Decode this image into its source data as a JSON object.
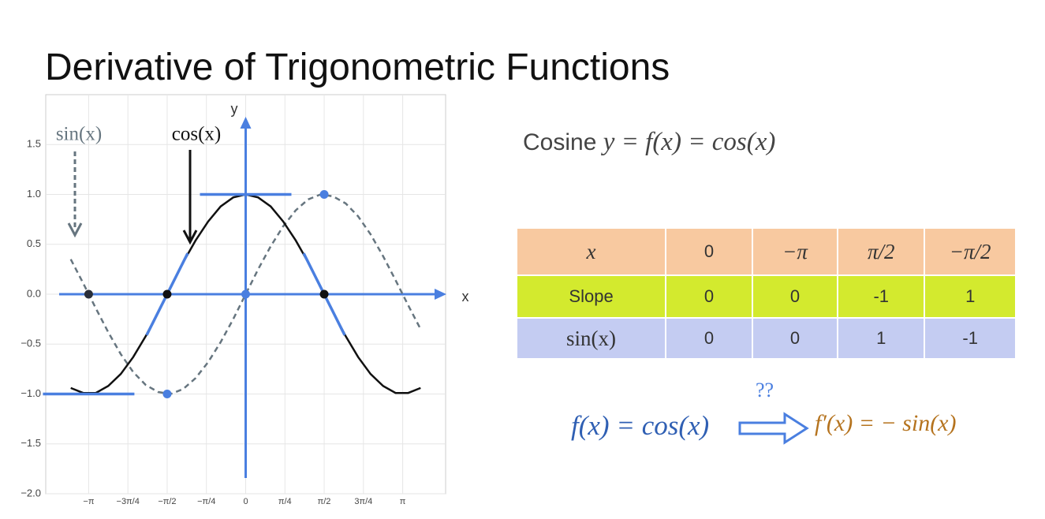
{
  "title": "Derivative of Trigonometric Functions",
  "chart_data": {
    "type": "line",
    "x": [
      -3.5,
      -3.25,
      -3,
      -2.75,
      -2.5,
      -2.25,
      -2,
      -1.75,
      -1.5,
      -1.25,
      -1,
      -0.75,
      -0.5,
      -0.25,
      0,
      0.25,
      0.5,
      0.75,
      1,
      1.25,
      1.5,
      1.75,
      2,
      2.25,
      2.5,
      2.75,
      3,
      3.25,
      3.5
    ],
    "series": [
      {
        "name": "cos(x)",
        "color": "#111111",
        "dashed": false,
        "values": [
          -0.94,
          -0.99,
          -0.99,
          -0.92,
          -0.8,
          -0.63,
          -0.42,
          -0.18,
          0.07,
          0.32,
          0.54,
          0.73,
          0.88,
          0.97,
          1,
          0.97,
          0.88,
          0.73,
          0.54,
          0.32,
          0.07,
          -0.18,
          -0.42,
          -0.63,
          -0.8,
          -0.92,
          -0.99,
          -0.99,
          -0.94
        ]
      },
      {
        "name": "sin(x)",
        "color": "#66757f",
        "dashed": true,
        "values": [
          0.35,
          0.11,
          -0.14,
          -0.38,
          -0.6,
          -0.78,
          -0.91,
          -0.98,
          -1,
          -0.95,
          -0.84,
          -0.68,
          -0.48,
          -0.25,
          0,
          0.25,
          0.48,
          0.68,
          0.84,
          0.95,
          1,
          0.98,
          0.91,
          0.78,
          0.6,
          0.38,
          0.14,
          -0.11,
          -0.35
        ]
      }
    ],
    "xlim": [
      -4,
      4
    ],
    "ylim": [
      -2,
      2
    ],
    "xticks": [
      {
        "value": -3.1416,
        "label": "−π"
      },
      {
        "value": -2.3562,
        "label": "−3π/4"
      },
      {
        "value": -1.5708,
        "label": "−π/2"
      },
      {
        "value": -0.7854,
        "label": "−π/4"
      },
      0,
      {
        "value": 0.7854,
        "label": "π/4"
      },
      {
        "value": 1.5708,
        "label": "π/2"
      },
      {
        "value": 2.3562,
        "label": "3π/4"
      },
      {
        "value": 3.1416,
        "label": "π"
      }
    ],
    "yticks": [
      {
        "value": -2,
        "label": "−2.0"
      },
      {
        "value": -1.5,
        "label": "−1.5"
      },
      {
        "value": -1,
        "label": "−1.0"
      },
      {
        "value": -0.5,
        "label": "−0.5"
      },
      {
        "value": 0,
        "label": "0.0"
      },
      {
        "value": 0.5,
        "label": "0.5"
      },
      {
        "value": 1,
        "label": "1.0"
      },
      {
        "value": 1.5,
        "label": "1.5"
      }
    ],
    "grid": true,
    "x_axis_label": "x",
    "y_axis_label": "y",
    "axis_color": "#4a7fe0",
    "tangents": [
      {
        "x": 0,
        "y": 1,
        "slope": 0
      },
      {
        "x": -3.1416,
        "y": -1,
        "slope": 0
      },
      {
        "x": -1.5708,
        "y": 0,
        "slope": 1
      },
      {
        "x": 1.5708,
        "y": 0,
        "slope": -1
      }
    ],
    "points": [
      {
        "x": -3.1416,
        "y": 0,
        "color": "#2a2f3a"
      },
      {
        "x": -1.5708,
        "y": 0,
        "color": "#111111"
      },
      {
        "x": 0,
        "y": 0,
        "color": "#4a7fe0"
      },
      {
        "x": 1.5708,
        "y": 0,
        "color": "#111111"
      },
      {
        "x": -1.5708,
        "y": -1,
        "color": "#4a7fe0"
      },
      {
        "x": 1.5708,
        "y": 1,
        "color": "#4a7fe0"
      }
    ]
  },
  "heading": {
    "label": "Cosine",
    "equation": "y = f(x) = cos(x)"
  },
  "table": {
    "rows": [
      [
        "x",
        "0",
        "−π",
        "π/2",
        "−π/2"
      ],
      [
        "Slope",
        "0",
        "0",
        "-1",
        "1"
      ],
      [
        "sin(x)",
        "0",
        "0",
        "1",
        "-1"
      ]
    ]
  },
  "formula": {
    "left": "f(x) = cos(x)",
    "question": "??",
    "right": "f′(x) = − sin(x)"
  }
}
